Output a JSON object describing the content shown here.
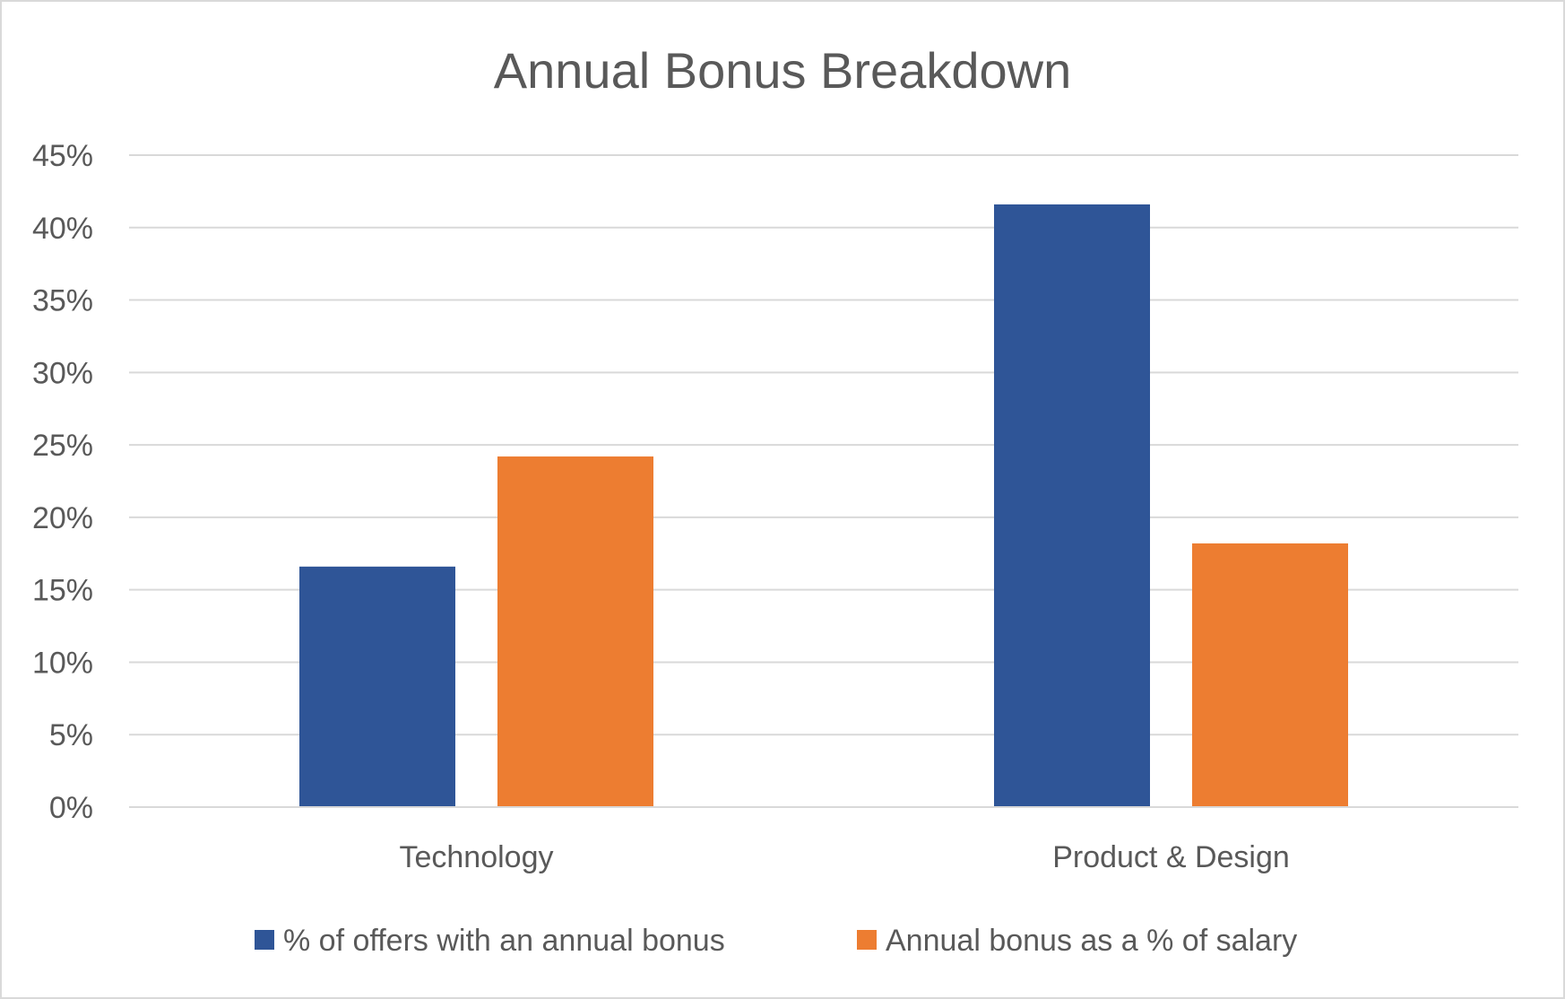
{
  "chart_data": {
    "type": "bar",
    "title": "Annual Bonus Breakdown",
    "xlabel": "",
    "ylabel": "",
    "categories": [
      "Technology",
      "Product & Design"
    ],
    "series": [
      {
        "name": "% of offers with an annual bonus",
        "values": [
          16.6,
          41.6
        ],
        "color": "#2f5597"
      },
      {
        "name": "Annual bonus as a % of salary",
        "values": [
          24.2,
          18.2
        ],
        "color": "#ed7d31"
      }
    ],
    "ylim": [
      0,
      45
    ],
    "yticks": [
      "0%",
      "5%",
      "10%",
      "15%",
      "20%",
      "25%",
      "30%",
      "35%",
      "40%",
      "45%"
    ],
    "grid": true,
    "legend_position": "bottom"
  }
}
